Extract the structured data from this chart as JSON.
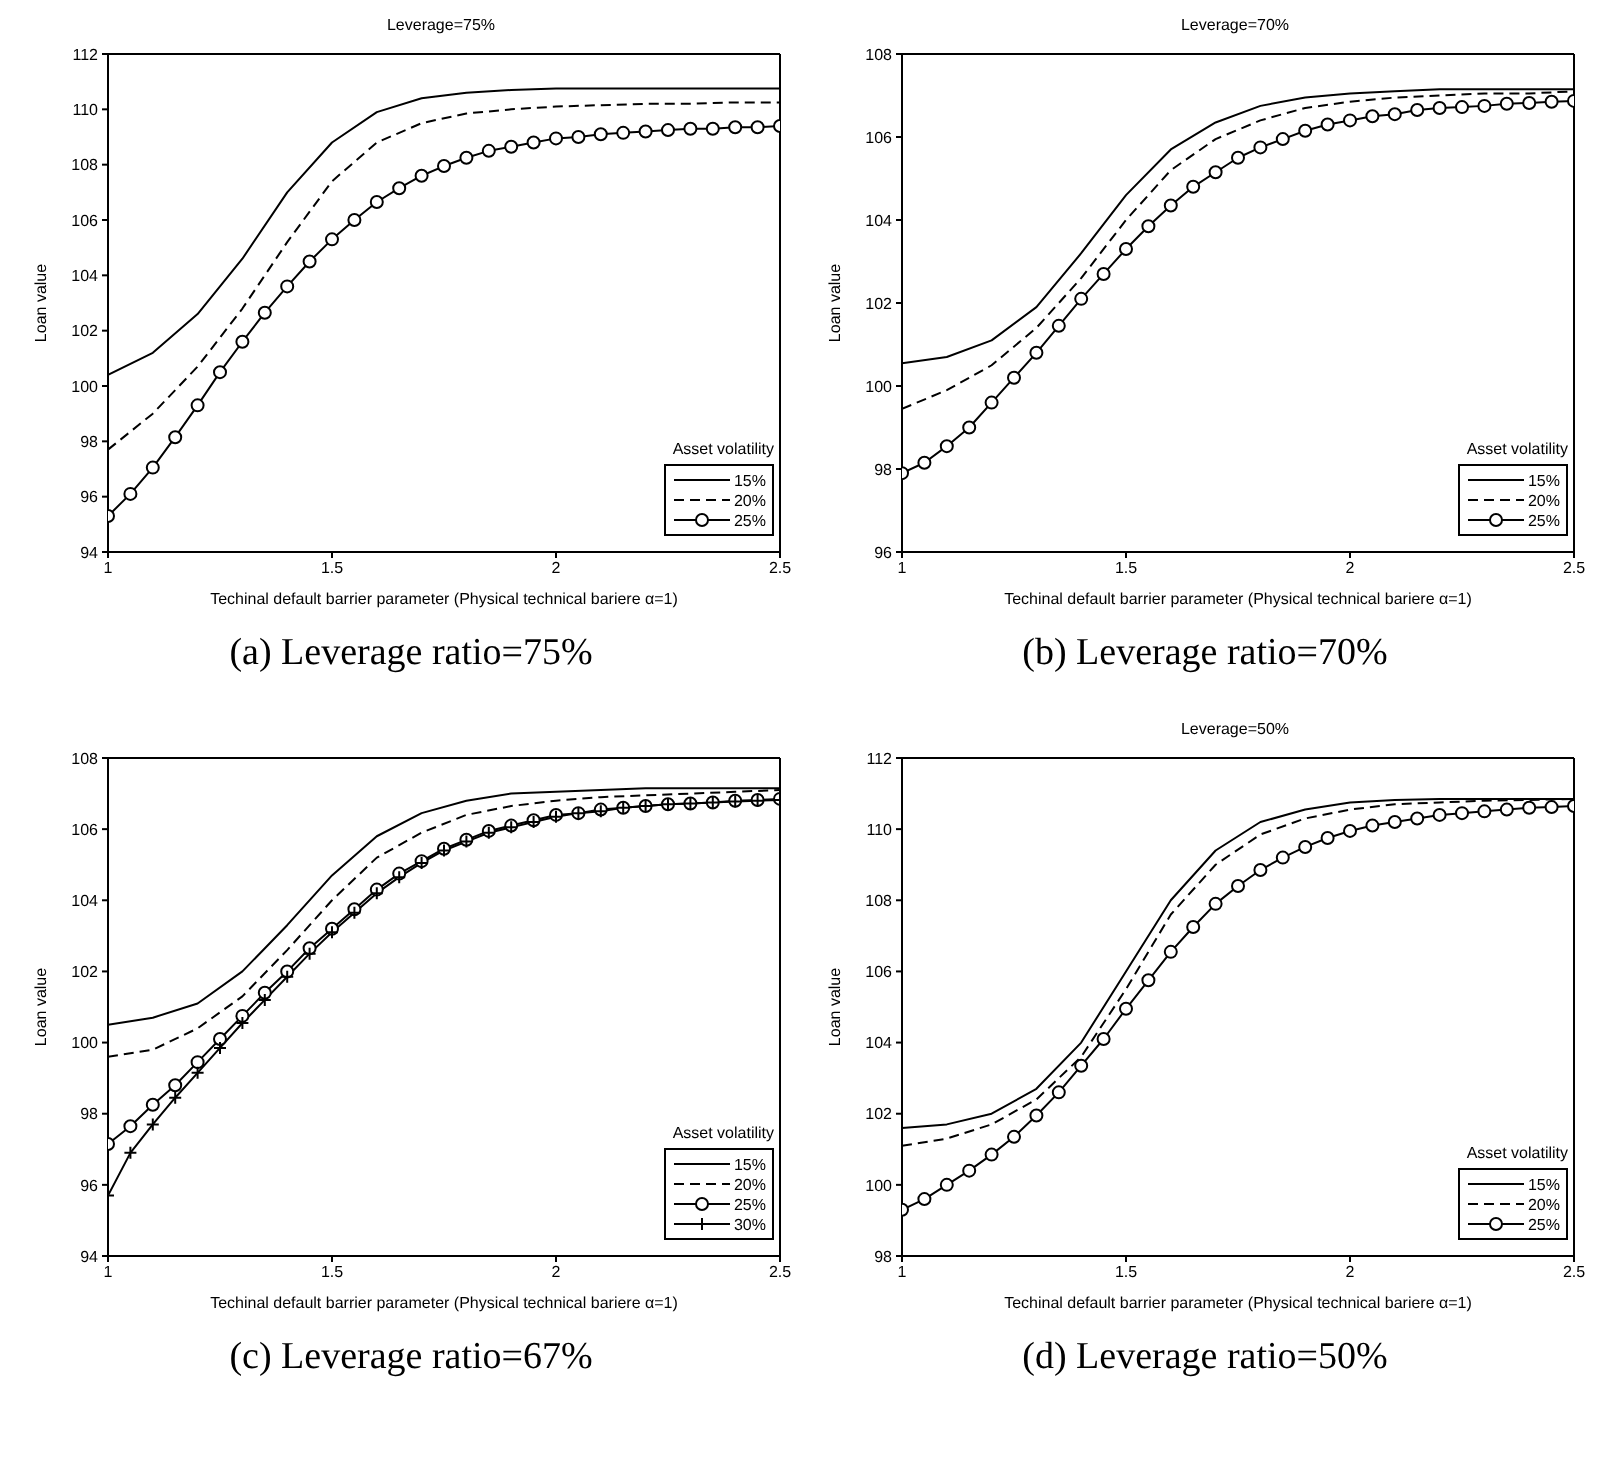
{
  "chart_data": [
    {
      "type": "line",
      "title": "Leverage=75%",
      "xlabel": "Techinal default barrier parameter (Physical technical bariere α=1)",
      "ylabel": "Loan value",
      "legend_title": "Asset volatility",
      "legend": "bottom right",
      "annotations": [
        "(a) Leverage ratio=75%"
      ],
      "xlim": [
        1,
        2.5
      ],
      "xticks": [
        1,
        1.5,
        2,
        2.5
      ],
      "ylim": [
        94,
        112
      ],
      "yticks": [
        94,
        96,
        98,
        100,
        102,
        104,
        106,
        108,
        110,
        112
      ],
      "grid": false,
      "series": [
        {
          "name": "15%",
          "color": "#000000",
          "line_style": "solid",
          "marker": "none",
          "x": [
            1,
            1.1,
            1.2,
            1.3,
            1.4,
            1.5,
            1.6,
            1.7,
            1.8,
            1.9,
            2,
            2.1,
            2.2,
            2.3,
            2.4,
            2.5
          ],
          "values": [
            100.4,
            101.2,
            102.6,
            104.6,
            107.0,
            108.8,
            109.9,
            110.4,
            110.6,
            110.7,
            110.75,
            110.75,
            110.75,
            110.75,
            110.75,
            110.75
          ]
        },
        {
          "name": "20%",
          "color": "#000000",
          "line_style": "dashed",
          "marker": "none",
          "x": [
            1,
            1.1,
            1.2,
            1.3,
            1.4,
            1.5,
            1.6,
            1.7,
            1.8,
            1.9,
            2,
            2.1,
            2.2,
            2.3,
            2.4,
            2.5
          ],
          "values": [
            97.7,
            99.0,
            100.7,
            102.8,
            105.2,
            107.4,
            108.8,
            109.5,
            109.85,
            110.0,
            110.1,
            110.15,
            110.2,
            110.2,
            110.25,
            110.25
          ]
        },
        {
          "name": "25%",
          "color": "#000000",
          "line_style": "solid",
          "marker": "circle",
          "x": [
            1,
            1.05,
            1.1,
            1.15,
            1.2,
            1.25,
            1.3,
            1.35,
            1.4,
            1.45,
            1.5,
            1.55,
            1.6,
            1.65,
            1.7,
            1.75,
            1.8,
            1.85,
            1.9,
            1.95,
            2,
            2.05,
            2.1,
            2.15,
            2.2,
            2.25,
            2.3,
            2.35,
            2.4,
            2.45,
            2.5
          ],
          "values": [
            95.3,
            96.1,
            97.05,
            98.15,
            99.3,
            100.5,
            101.6,
            102.65,
            103.6,
            104.5,
            105.3,
            106.0,
            106.65,
            107.15,
            107.6,
            107.95,
            108.25,
            108.5,
            108.65,
            108.8,
            108.95,
            109.0,
            109.1,
            109.15,
            109.2,
            109.25,
            109.3,
            109.3,
            109.35,
            109.35,
            109.4
          ]
        }
      ]
    },
    {
      "type": "line",
      "title": "Leverage=70%",
      "xlabel": "Techinal default barrier parameter (Physical technical bariere α=1)",
      "ylabel": "Loan value",
      "legend_title": "Asset volatility",
      "legend": "bottom right",
      "annotations": [
        "(b) Leverage ratio=70%"
      ],
      "xlim": [
        1,
        2.5
      ],
      "xticks": [
        1,
        1.5,
        2,
        2.5
      ],
      "ylim": [
        96,
        108
      ],
      "yticks": [
        96,
        98,
        100,
        102,
        104,
        106,
        108
      ],
      "grid": false,
      "series": [
        {
          "name": "15%",
          "color": "#000000",
          "line_style": "solid",
          "marker": "none",
          "x": [
            1,
            1.1,
            1.2,
            1.3,
            1.4,
            1.5,
            1.6,
            1.7,
            1.8,
            1.9,
            2,
            2.1,
            2.2,
            2.3,
            2.4,
            2.5
          ],
          "values": [
            100.55,
            100.7,
            101.1,
            101.9,
            103.2,
            104.6,
            105.7,
            106.35,
            106.75,
            106.95,
            107.05,
            107.1,
            107.15,
            107.15,
            107.15,
            107.15
          ]
        },
        {
          "name": "20%",
          "color": "#000000",
          "line_style": "dashed",
          "marker": "none",
          "x": [
            1,
            1.1,
            1.2,
            1.3,
            1.4,
            1.5,
            1.6,
            1.7,
            1.8,
            1.9,
            2,
            2.1,
            2.2,
            2.3,
            2.4,
            2.5
          ],
          "values": [
            99.45,
            99.9,
            100.5,
            101.4,
            102.6,
            104.0,
            105.2,
            105.95,
            106.4,
            106.7,
            106.85,
            106.95,
            107.0,
            107.05,
            107.05,
            107.1
          ]
        },
        {
          "name": "25%",
          "color": "#000000",
          "line_style": "solid",
          "marker": "circle",
          "x": [
            1,
            1.05,
            1.1,
            1.15,
            1.2,
            1.25,
            1.3,
            1.35,
            1.4,
            1.45,
            1.5,
            1.55,
            1.6,
            1.65,
            1.7,
            1.75,
            1.8,
            1.85,
            1.9,
            1.95,
            2,
            2.05,
            2.1,
            2.15,
            2.2,
            2.25,
            2.3,
            2.35,
            2.4,
            2.45,
            2.5
          ],
          "values": [
            97.9,
            98.15,
            98.55,
            99.0,
            99.6,
            100.2,
            100.8,
            101.45,
            102.1,
            102.7,
            103.3,
            103.85,
            104.35,
            104.8,
            105.15,
            105.5,
            105.75,
            105.95,
            106.15,
            106.3,
            106.4,
            106.5,
            106.55,
            106.65,
            106.7,
            106.72,
            106.75,
            106.8,
            106.82,
            106.85,
            106.87
          ]
        }
      ]
    },
    {
      "type": "line",
      "xlabel": "Techinal default barrier parameter (Physical technical bariere α=1)",
      "ylabel": "Loan value",
      "legend_title": "Asset volatility",
      "legend": "bottom right",
      "annotations": [
        "(c) Leverage ratio=67%"
      ],
      "xlim": [
        1,
        2.5
      ],
      "xticks": [
        1,
        1.5,
        2,
        2.5
      ],
      "ylim": [
        94,
        108
      ],
      "yticks": [
        94,
        96,
        98,
        100,
        102,
        104,
        106,
        108
      ],
      "grid": false,
      "series": [
        {
          "name": "15%",
          "color": "#000000",
          "line_style": "solid",
          "marker": "none",
          "x": [
            1,
            1.1,
            1.2,
            1.3,
            1.4,
            1.5,
            1.6,
            1.7,
            1.8,
            1.9,
            2,
            2.1,
            2.2,
            2.3,
            2.4,
            2.5
          ],
          "values": [
            100.5,
            100.7,
            101.1,
            102.0,
            103.3,
            104.7,
            105.8,
            106.45,
            106.8,
            107.0,
            107.05,
            107.1,
            107.15,
            107.15,
            107.15,
            107.15
          ]
        },
        {
          "name": "20%",
          "color": "#000000",
          "line_style": "dashed",
          "marker": "none",
          "x": [
            1,
            1.1,
            1.2,
            1.3,
            1.4,
            1.5,
            1.6,
            1.7,
            1.8,
            1.9,
            2,
            2.1,
            2.2,
            2.3,
            2.4,
            2.5
          ],
          "values": [
            99.6,
            99.8,
            100.4,
            101.3,
            102.6,
            104.0,
            105.2,
            105.9,
            106.4,
            106.65,
            106.8,
            106.9,
            106.95,
            107.0,
            107.05,
            107.1
          ]
        },
        {
          "name": "25%",
          "color": "#000000",
          "line_style": "solid",
          "marker": "circle",
          "x": [
            1,
            1.05,
            1.1,
            1.15,
            1.2,
            1.25,
            1.3,
            1.35,
            1.4,
            1.45,
            1.5,
            1.55,
            1.6,
            1.65,
            1.7,
            1.75,
            1.8,
            1.85,
            1.9,
            1.95,
            2,
            2.05,
            2.1,
            2.15,
            2.2,
            2.25,
            2.3,
            2.35,
            2.4,
            2.45,
            2.5
          ],
          "values": [
            97.15,
            97.65,
            98.25,
            98.8,
            99.45,
            100.1,
            100.75,
            101.4,
            102.0,
            102.65,
            103.2,
            103.75,
            104.3,
            104.75,
            105.1,
            105.45,
            105.7,
            105.95,
            106.1,
            106.25,
            106.4,
            106.45,
            106.55,
            106.6,
            106.65,
            106.7,
            106.72,
            106.75,
            106.8,
            106.82,
            106.85
          ]
        },
        {
          "name": "30%",
          "color": "#000000",
          "line_style": "solid",
          "marker": "cross",
          "x": [
            1,
            1.05,
            1.1,
            1.15,
            1.2,
            1.25,
            1.3,
            1.35,
            1.4,
            1.45,
            1.5,
            1.55,
            1.6,
            1.65,
            1.7,
            1.75,
            1.8,
            1.85,
            1.9,
            1.95,
            2,
            2.05,
            2.1,
            2.15,
            2.2,
            2.25,
            2.3,
            2.35,
            2.4,
            2.45,
            2.5
          ],
          "values": [
            95.7,
            96.9,
            97.7,
            98.45,
            99.15,
            99.85,
            100.55,
            101.2,
            101.85,
            102.5,
            103.1,
            103.65,
            104.2,
            104.65,
            105.05,
            105.4,
            105.65,
            105.9,
            106.05,
            106.2,
            106.35,
            106.45,
            106.5,
            106.6,
            106.65,
            106.7,
            106.72,
            106.75,
            106.78,
            106.8,
            106.82
          ]
        }
      ]
    },
    {
      "type": "line",
      "title": "Leverage=50%",
      "xlabel": "Techinal default barrier parameter (Physical technical bariere α=1)",
      "ylabel": "Loan value",
      "legend_title": "Asset volatility",
      "legend": "bottom right",
      "annotations": [
        "(d) Leverage ratio=50%"
      ],
      "xlim": [
        1,
        2.5
      ],
      "xticks": [
        1,
        1.5,
        2,
        2.5
      ],
      "ylim": [
        98,
        112
      ],
      "yticks": [
        98,
        100,
        102,
        104,
        106,
        108,
        110,
        112
      ],
      "grid": false,
      "series": [
        {
          "name": "15%",
          "color": "#000000",
          "line_style": "solid",
          "marker": "none",
          "x": [
            1,
            1.1,
            1.2,
            1.3,
            1.4,
            1.5,
            1.6,
            1.7,
            1.8,
            1.9,
            2,
            2.1,
            2.2,
            2.3,
            2.4,
            2.5
          ],
          "values": [
            101.6,
            101.7,
            102.0,
            102.7,
            104.0,
            106.0,
            108.0,
            109.4,
            110.2,
            110.55,
            110.75,
            110.82,
            110.85,
            110.85,
            110.85,
            110.85
          ]
        },
        {
          "name": "20%",
          "color": "#000000",
          "line_style": "dashed",
          "marker": "none",
          "x": [
            1,
            1.1,
            1.2,
            1.3,
            1.4,
            1.5,
            1.6,
            1.7,
            1.8,
            1.9,
            2,
            2.1,
            2.2,
            2.3,
            2.4,
            2.5
          ],
          "values": [
            101.1,
            101.3,
            101.7,
            102.4,
            103.6,
            105.5,
            107.6,
            109.0,
            109.85,
            110.3,
            110.55,
            110.7,
            110.75,
            110.8,
            110.82,
            110.85
          ]
        },
        {
          "name": "25%",
          "color": "#000000",
          "line_style": "solid",
          "marker": "circle",
          "x": [
            1,
            1.05,
            1.1,
            1.15,
            1.2,
            1.25,
            1.3,
            1.35,
            1.4,
            1.45,
            1.5,
            1.55,
            1.6,
            1.65,
            1.7,
            1.75,
            1.8,
            1.85,
            1.9,
            1.95,
            2,
            2.05,
            2.1,
            2.15,
            2.2,
            2.25,
            2.3,
            2.35,
            2.4,
            2.45,
            2.5
          ],
          "values": [
            99.3,
            99.6,
            100.0,
            100.4,
            100.85,
            101.35,
            101.95,
            102.6,
            103.35,
            104.1,
            104.95,
            105.75,
            106.55,
            107.25,
            107.9,
            108.4,
            108.85,
            109.2,
            109.5,
            109.75,
            109.95,
            110.1,
            110.2,
            110.3,
            110.4,
            110.45,
            110.5,
            110.55,
            110.6,
            110.62,
            110.65
          ]
        }
      ]
    }
  ]
}
